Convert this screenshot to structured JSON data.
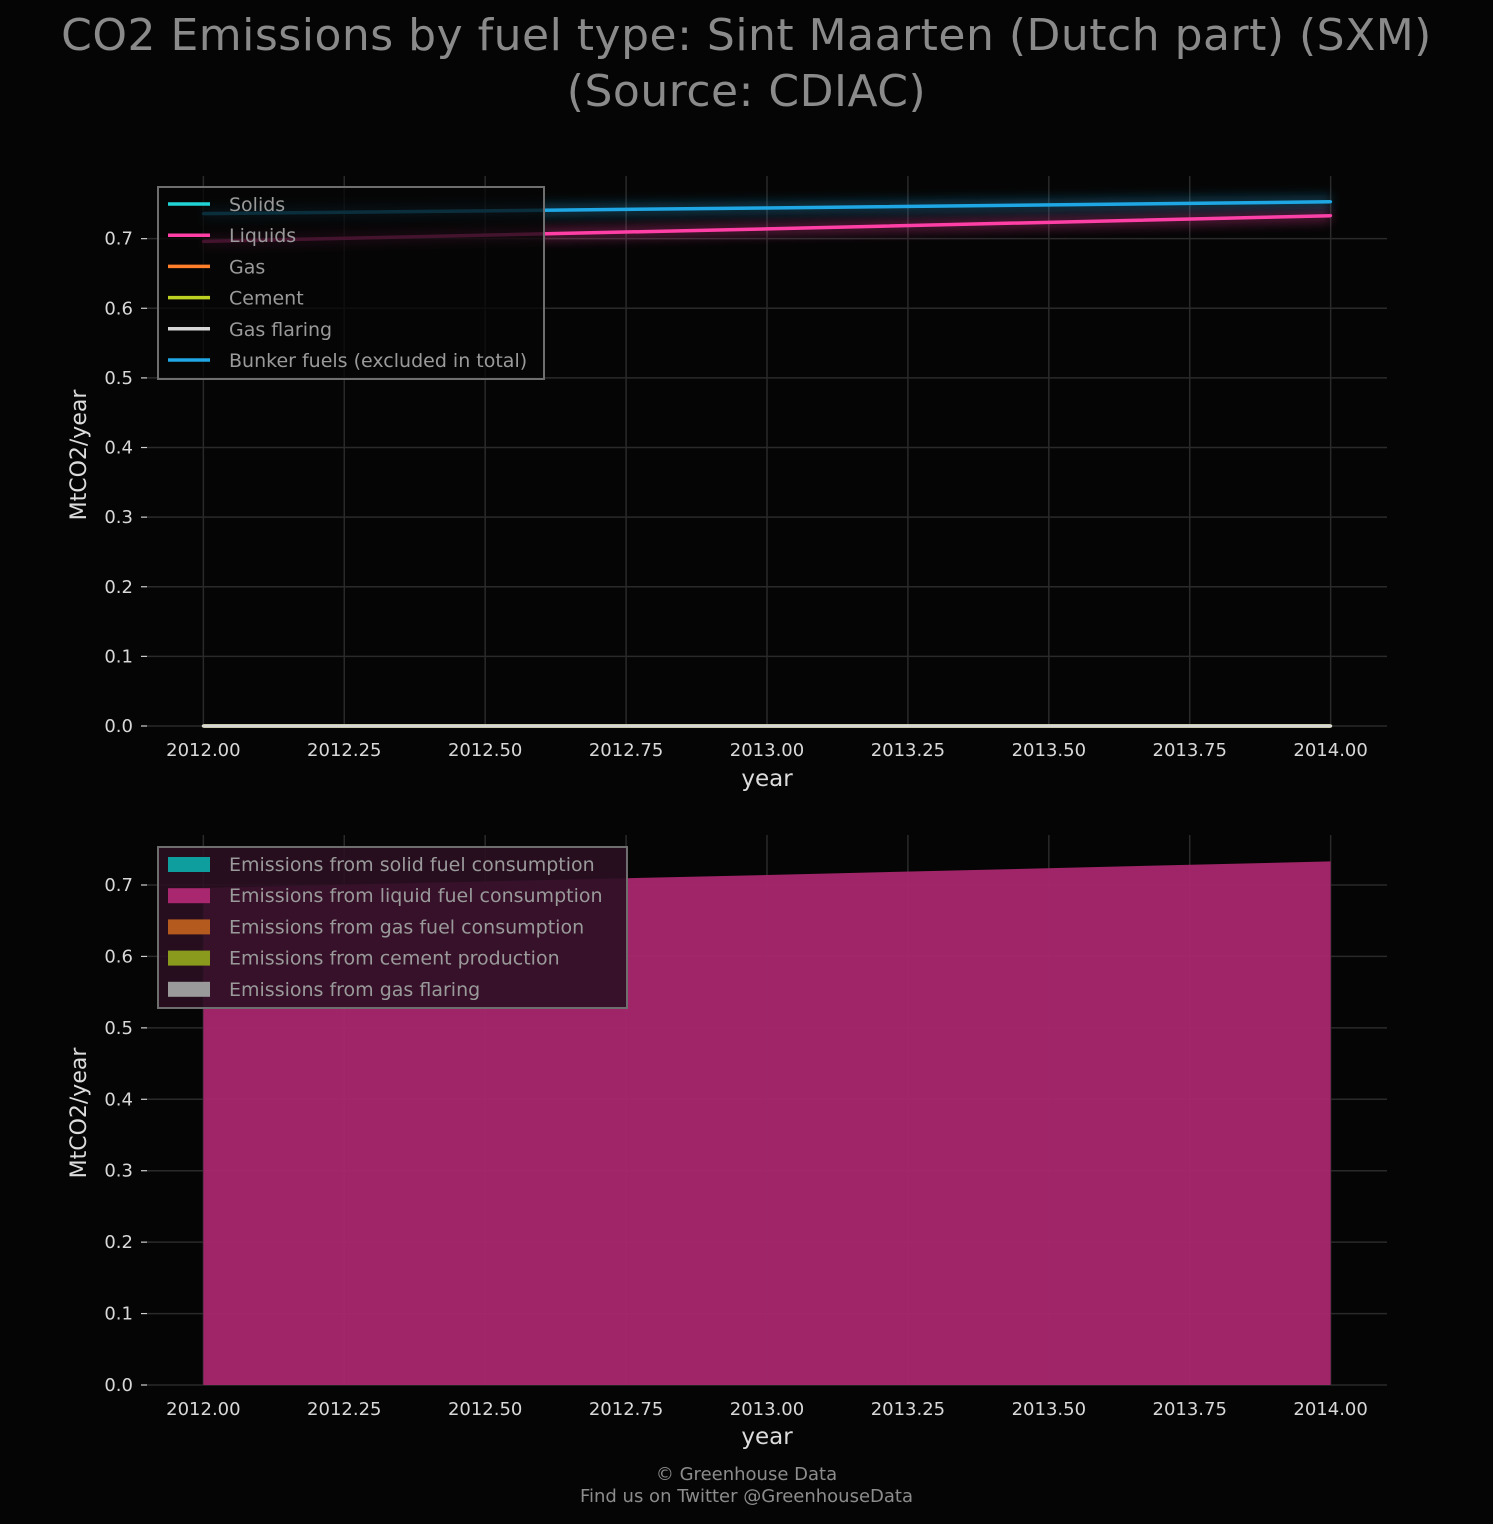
{
  "title": {
    "line1": "CO2 Emissions by fuel type: Sint Maarten (Dutch part) (SXM)",
    "line2": "(Source: CDIAC)"
  },
  "footer": {
    "line1": "© Greenhouse Data",
    "line2": "Find us on Twitter @GreenhouseData"
  },
  "chart_data": [
    {
      "type": "line",
      "xlabel": "year",
      "ylabel": "MtCO2/year",
      "xlim": [
        2011.9,
        2014.1
      ],
      "ylim": [
        0.0,
        0.79
      ],
      "x_ticks": [
        "2012.00",
        "2012.25",
        "2012.50",
        "2012.75",
        "2013.00",
        "2013.25",
        "2013.50",
        "2013.75",
        "2014.00"
      ],
      "y_ticks": [
        "0.0",
        "0.1",
        "0.2",
        "0.3",
        "0.4",
        "0.5",
        "0.6",
        "0.7"
      ],
      "grid": true,
      "legend_position": "top-left",
      "x": [
        2012,
        2013,
        2014
      ],
      "series": [
        {
          "name": "Solids",
          "color": "#1fd3d6",
          "values": [
            0.0,
            0.0,
            0.0
          ]
        },
        {
          "name": "Liquids",
          "color": "#ff3fa6",
          "values": [
            0.696,
            0.714,
            0.733
          ]
        },
        {
          "name": "Gas",
          "color": "#ff7f2a",
          "values": [
            0.0,
            0.0,
            0.0
          ]
        },
        {
          "name": "Cement",
          "color": "#bcd122",
          "values": [
            0.0,
            0.0,
            0.0
          ]
        },
        {
          "name": "Gas flaring",
          "color": "#d6d6d6",
          "values": [
            0.0,
            0.0,
            0.0
          ]
        },
        {
          "name": "Bunker fuels (excluded in total)",
          "color": "#1ea7e4",
          "values": [
            0.736,
            0.744,
            0.753
          ]
        }
      ]
    },
    {
      "type": "area",
      "xlabel": "year",
      "ylabel": "MtCO2/year",
      "xlim": [
        2011.9,
        2014.1
      ],
      "ylim": [
        0.0,
        0.77
      ],
      "x_ticks": [
        "2012.00",
        "2012.25",
        "2012.50",
        "2012.75",
        "2013.00",
        "2013.25",
        "2013.50",
        "2013.75",
        "2014.00"
      ],
      "y_ticks": [
        "0.0",
        "0.1",
        "0.2",
        "0.3",
        "0.4",
        "0.5",
        "0.6",
        "0.7"
      ],
      "grid": true,
      "legend_position": "top-left",
      "stacked": true,
      "x": [
        2012,
        2013,
        2014
      ],
      "series": [
        {
          "name": "Emissions from solid fuel consumption",
          "color": "#0e9e9e",
          "values": [
            0.0,
            0.0,
            0.0
          ]
        },
        {
          "name": "Emissions from liquid fuel consumption",
          "color": "#a8276e",
          "values": [
            0.696,
            0.714,
            0.733
          ]
        },
        {
          "name": "Emissions from gas fuel consumption",
          "color": "#b45a1e",
          "values": [
            0.0,
            0.0,
            0.0
          ]
        },
        {
          "name": "Emissions from cement production",
          "color": "#8a9a1c",
          "values": [
            0.0,
            0.0,
            0.0
          ]
        },
        {
          "name": "Emissions from gas flaring",
          "color": "#9a9a9a",
          "values": [
            0.0,
            0.0,
            0.0
          ]
        }
      ]
    }
  ]
}
